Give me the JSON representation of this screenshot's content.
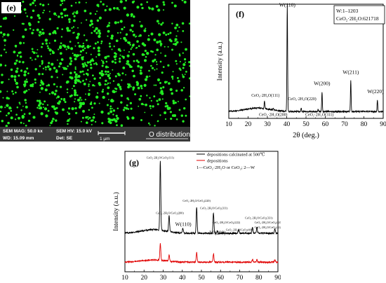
{
  "panel_e": {
    "label": "(e)",
    "caption": "O distribution",
    "info": {
      "mag": "SEM MAG: 50.0 kx",
      "hv": "SEM HV: 15.0 kV",
      "wd": "WD: 15.09 mm",
      "det": "Det: SE",
      "scale": "1 µm"
    },
    "colors": {
      "dot": "#22ee22",
      "background": "#000000",
      "infobar": "#3a3a3a"
    }
  },
  "chart_data": [
    {
      "type": "line",
      "panel_label": "(f)",
      "legend_lines": [
        "W:1–1203",
        "CeO₂·2H₂O:621718"
      ],
      "xlabel": "2θ (deg.)",
      "ylabel": "Intensity (a.u.)",
      "xlim": [
        10,
        90
      ],
      "xticks": [
        10,
        20,
        30,
        40,
        50,
        60,
        70,
        80,
        90
      ],
      "grid": false,
      "legend": "top-right",
      "series": [
        {
          "color": "#000000",
          "baseline": 0.06,
          "peaks": [
            {
              "x": 28.5,
              "h": 0.07
            },
            {
              "x": 33.1,
              "h": 0.02
            },
            {
              "x": 40.3,
              "h": 0.95
            },
            {
              "x": 47.5,
              "h": 0.035
            },
            {
              "x": 56.3,
              "h": 0.02
            },
            {
              "x": 58.3,
              "h": 0.17
            },
            {
              "x": 73.2,
              "h": 0.27
            },
            {
              "x": 87.0,
              "h": 0.1
            }
          ]
        }
      ],
      "annotations": [
        {
          "text": "W(110)",
          "x": 40.3,
          "y": 0.98
        },
        {
          "text": "W(200)",
          "x": 58.3,
          "y": 0.29
        },
        {
          "text": "W(211)",
          "x": 73.2,
          "y": 0.39
        },
        {
          "text": "W(220)",
          "x": 86.0,
          "y": 0.22
        },
        {
          "text": "CeO₂·2H₂O(111)",
          "x": 29.0,
          "y": 0.19
        },
        {
          "text": "CeO₂·2H₂O(200)",
          "x": 33.0,
          "y": 0.02
        },
        {
          "text": "CeO₂·2H₂O(220)",
          "x": 48.0,
          "y": 0.16
        },
        {
          "text": "CeO₂·2H₂O(311)",
          "x": 57.0,
          "y": 0.02
        }
      ]
    },
    {
      "type": "line",
      "panel_label": "(g)",
      "xlabel": "",
      "ylabel": "Intensity (a.u.)",
      "xlim": [
        10,
        90
      ],
      "xticks": [
        10,
        20,
        30,
        40,
        50,
        60,
        70,
        80,
        90
      ],
      "grid": false,
      "legend": "top-right",
      "legend_note": "1—CeO₂·2H₂O or CeO₂; 2—W",
      "series": [
        {
          "name": "depositions calcinated at 500℃",
          "color": "#000000",
          "baseline": 0.32,
          "peaks": [
            {
              "x": 28.5,
              "h": 0.58
            },
            {
              "x": 33.1,
              "h": 0.14
            },
            {
              "x": 40.3,
              "h": 0.04
            },
            {
              "x": 47.5,
              "h": 0.22
            },
            {
              "x": 56.3,
              "h": 0.17
            },
            {
              "x": 58.3,
              "h": 0.02
            },
            {
              "x": 69.4,
              "h": 0.03
            },
            {
              "x": 76.7,
              "h": 0.05
            },
            {
              "x": 79.0,
              "h": 0.05
            },
            {
              "x": 88.4,
              "h": 0.04
            }
          ]
        },
        {
          "name": "depositions",
          "color": "#e00000",
          "baseline": 0.08,
          "peaks": [
            {
              "x": 28.5,
              "h": 0.14
            },
            {
              "x": 33.1,
              "h": 0.05
            },
            {
              "x": 47.5,
              "h": 0.08
            },
            {
              "x": 56.3,
              "h": 0.07
            },
            {
              "x": 76.7,
              "h": 0.02
            },
            {
              "x": 79.0,
              "h": 0.02
            },
            {
              "x": 88.4,
              "h": 0.02
            }
          ]
        }
      ],
      "annotations": [
        {
          "text": "CeO₂·2H₂O/CeO₂(111)",
          "x": 28.5,
          "y": 0.94
        },
        {
          "text": "CeO₂·2H₂O/CeO₂(200)",
          "x": 33.5,
          "y": 0.48
        },
        {
          "text": "CeO₂·2H₂O/CeO₂(220)",
          "x": 47.5,
          "y": 0.58
        },
        {
          "text": "CeO₂·2H₂O/CeO₂(311)",
          "x": 56.5,
          "y": 0.52
        },
        {
          "text": "CeO₂·2H₂O/CeO₂(222)",
          "x": 63.0,
          "y": 0.4
        },
        {
          "text": "CeO₂·2H₂O/CeO₂(400)",
          "x": 70.0,
          "y": 0.34
        },
        {
          "text": "CeO₂·2H₂O/CeO₂(331)",
          "x": 80.0,
          "y": 0.44
        },
        {
          "text": "CeO₂·2H₂O/CeO₂(420)",
          "x": 85.0,
          "y": 0.4
        },
        {
          "text": "CeO₂·2H₂O/CeO₂(422)",
          "x": 85.0,
          "y": 0.36
        },
        {
          "text": "W(110)",
          "x": 40.5,
          "y": 0.38
        },
        {
          "text": "W(200)",
          "x": 58.5,
          "y": 0.31
        }
      ]
    }
  ]
}
